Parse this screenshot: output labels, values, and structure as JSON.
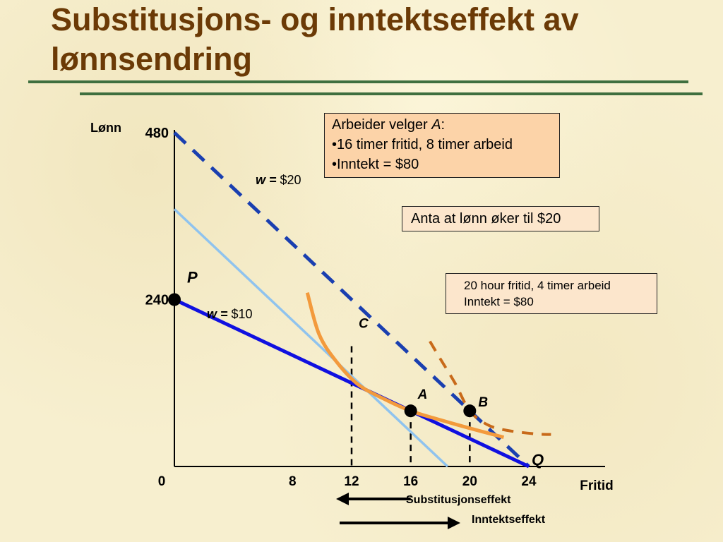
{
  "slide": {
    "title": "Substitusjons- og inntektseffekt av lønnsendring"
  },
  "info_box_a": {
    "line1_prefix": "Arbeider velger ",
    "line1_point": "A",
    "line1_suffix": ":",
    "line2": "•16 timer fritid, 8 timer arbeid",
    "line3": "•Inntekt = $80"
  },
  "info_box_b": {
    "text": "Anta at lønn øker til $20"
  },
  "info_box_c": {
    "line1": "20 hour fritid, 4 timer arbeid",
    "line2": "Inntekt = $80"
  },
  "colors": {
    "title": "#6b3a06",
    "rule": "#3f6f3f",
    "budget_w10": "#1010e0",
    "budget_w20": "#1a3fb0",
    "compensated_line": "#8fc3ee",
    "indifference": "#f39a3c",
    "indifference_dashed": "#c86a1a"
  },
  "chart_data": {
    "type": "line",
    "xlabel": "Fritid",
    "ylabel": "Lønn",
    "origin_label": "0",
    "x_ticks": [
      8,
      12,
      16,
      20,
      24
    ],
    "y_ticks": [
      240,
      480
    ],
    "xlim": [
      0,
      24
    ],
    "ylim": [
      0,
      480
    ],
    "series": [
      {
        "name": "w = $10",
        "label_prefix": "w =",
        "label_value": " $10",
        "x": [
          0,
          24
        ],
        "y": [
          240,
          0
        ],
        "style": "solid"
      },
      {
        "name": "w = $20",
        "label_prefix": "w =",
        "label_value": " $20",
        "x": [
          0,
          24
        ],
        "y": [
          480,
          0
        ],
        "style": "dashed"
      },
      {
        "x": [
          0,
          18.5
        ],
        "y": [
          370,
          0
        ],
        "style": "solid"
      }
    ],
    "indifference_curves": [
      {
        "x": [
          9,
          9.8,
          11,
          12.5,
          14.5,
          16,
          17.5,
          20,
          22.3
        ],
        "y": [
          250,
          190,
          150,
          117,
          94,
          80,
          70,
          55,
          42
        ],
        "style": "solid"
      },
      {
        "x": [
          17.3,
          18,
          19,
          20,
          21.2,
          22.5,
          24.4,
          25.5
        ],
        "y": [
          180,
          155,
          120,
          80,
          60,
          52,
          47,
          46
        ],
        "style": "dashed"
      }
    ],
    "points": [
      {
        "label": "P",
        "x": 0,
        "y": 240
      },
      {
        "label": "A",
        "x": 16,
        "y": 80
      },
      {
        "label": "B",
        "x": 20,
        "y": 80
      },
      {
        "label": "C",
        "x": 12,
        "y": 173
      },
      {
        "label": "Q",
        "x": 24,
        "y": 0
      }
    ],
    "drop_lines_x": [
      12,
      16,
      20
    ],
    "annotations": [
      {
        "text": "Substitusjonseffekt",
        "arrow": "left",
        "from_x": 16,
        "to_x": 11
      },
      {
        "text": "Inntektseffekt",
        "arrow": "right",
        "from_x": 11,
        "to_x": 20
      }
    ]
  }
}
